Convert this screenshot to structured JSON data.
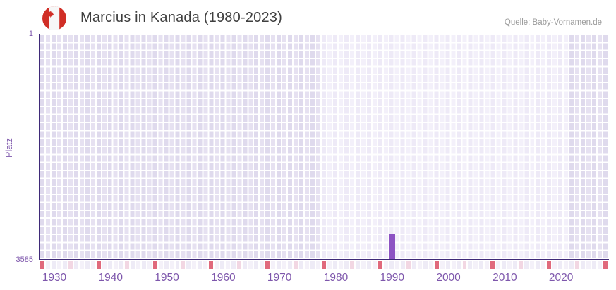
{
  "header": {
    "title": "Marcius in Kanada (1980-2023)",
    "source": "Quelle: Baby-Vornamen.de",
    "flag": {
      "red": "#d02e26",
      "white": "#f7f7f7"
    }
  },
  "chart_data": {
    "type": "bar",
    "title": "Marcius in Kanada (1980-2023)",
    "xlabel": "",
    "ylabel": "Platz",
    "grid": true,
    "legend": false,
    "y_axis": {
      "top_label": "1",
      "bottom_label": "3585",
      "min": 1,
      "max": 3585,
      "reversed": true
    },
    "x_axis": {
      "start_year": 1928,
      "end_year": 2028,
      "tick_labels": [
        "1930",
        "1940",
        "1950",
        "1960",
        "1970",
        "1980",
        "1990",
        "2000",
        "2010",
        "2020"
      ]
    },
    "highlight_band_years": {
      "from": 1978,
      "to": 2022
    },
    "series": [
      {
        "name": "Platz",
        "points": [
          {
            "year": 1990,
            "rank": 3190
          }
        ]
      }
    ],
    "tick_strip": {
      "dark_every": 10,
      "dark_offset": 0,
      "light_offset": 5
    },
    "colors": {
      "bar": "#8d53c3",
      "axis_line": "#3f2a78",
      "tick_text": "#7e57ac",
      "title_text": "#3f3f3f",
      "source_text": "#9b9b9b",
      "cell_dark_a": "#dfdaed",
      "cell_dark_b": "#e6e1f1",
      "cell_light_a": "#eeeaf7",
      "cell_light_b": "#f3f0fa",
      "gridline": "#ffffff",
      "strip_dark": "#e0697c",
      "strip_light": "#f2d7e3",
      "strip_a": "#eeebf6",
      "strip_b": "#f4f1f9"
    }
  }
}
